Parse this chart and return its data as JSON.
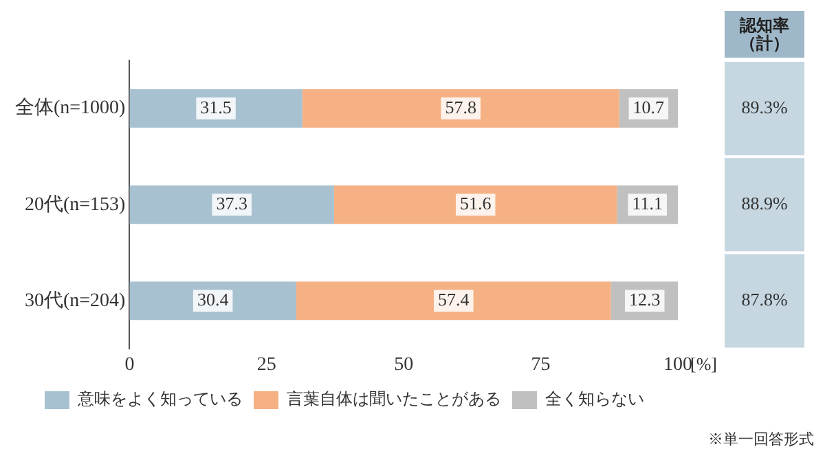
{
  "chart_data": {
    "type": "bar",
    "orientation": "horizontal",
    "stacked": true,
    "categories": [
      "全体(n=1000)",
      "20代(n=153)",
      "30代(n=204)"
    ],
    "series": [
      {
        "name": "意味をよく知っている",
        "color": "#a7c1d1",
        "values": [
          31.5,
          37.3,
          30.4
        ]
      },
      {
        "name": "言葉自体は聞いたことがある",
        "color": "#f5b183",
        "values": [
          57.8,
          51.6,
          57.4
        ]
      },
      {
        "name": "全く知らない",
        "color": "#c0c0c0",
        "values": [
          10.7,
          11.1,
          12.3
        ]
      }
    ],
    "xlim": [
      0,
      100
    ],
    "xticks": [
      0,
      25,
      50,
      75,
      100
    ],
    "xlabel": "[%]",
    "data_labels": true,
    "annotations": [
      "認知率（計）",
      "89.3%",
      "88.9%",
      "87.8%",
      "※単一回答形式"
    ],
    "legend": "bottom",
    "grid": false
  }
}
